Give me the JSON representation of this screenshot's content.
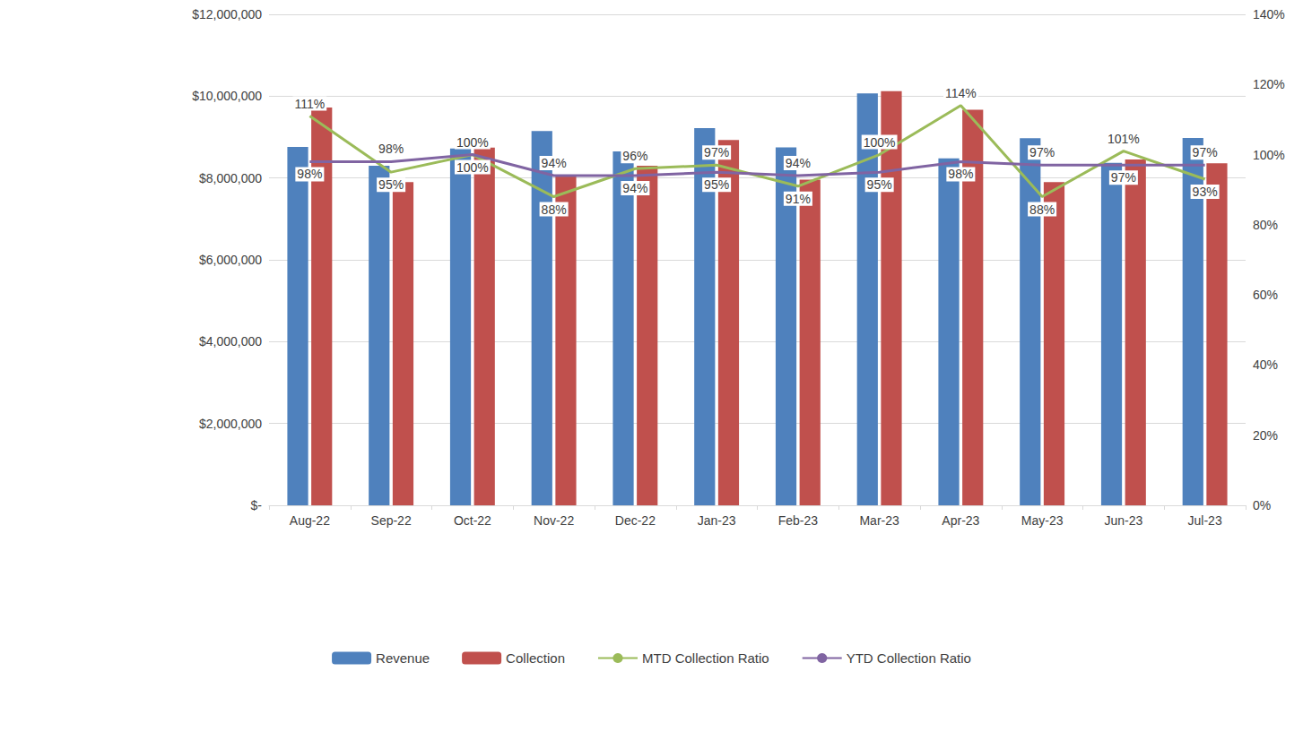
{
  "chart_data": {
    "type": "bar",
    "categories": [
      "Aug-22",
      "Sep-22",
      "Oct-22",
      "Nov-22",
      "Dec-22",
      "Jan-23",
      "Feb-23",
      "Mar-23",
      "Apr-23",
      "May-23",
      "Jun-23",
      "Jul-23"
    ],
    "series": [
      {
        "name": "Revenue",
        "type": "bar",
        "color": "#4F81BD",
        "values": [
          8760000,
          8300000,
          8720000,
          9150000,
          8650000,
          9220000,
          8750000,
          10070000,
          8480000,
          8970000,
          8370000,
          8980000
        ]
      },
      {
        "name": "Collection",
        "type": "bar",
        "color": "#C0504D",
        "values": [
          9720000,
          7900000,
          8740000,
          8050000,
          8300000,
          8930000,
          7960000,
          10120000,
          9670000,
          7900000,
          8450000,
          8360000
        ]
      },
      {
        "name": "MTD Collection Ratio",
        "type": "line",
        "axis": "y2",
        "color": "#9BBB59",
        "data_labels": true,
        "values": [
          111,
          95,
          100,
          88,
          96,
          97,
          91,
          100,
          114,
          88,
          101,
          93
        ],
        "value_labels": [
          "111%",
          "95%",
          "100%",
          "88%",
          "96%",
          "97%",
          "91%",
          "100%",
          "114%",
          "88%",
          "101%",
          "93%"
        ]
      },
      {
        "name": "YTD Collection Ratio",
        "type": "line",
        "axis": "y2",
        "color": "#8064A2",
        "data_labels": true,
        "values": [
          98,
          98,
          100,
          94,
          94,
          95,
          94,
          95,
          98,
          97,
          97,
          97
        ],
        "value_labels": [
          "98%",
          "98%",
          "100%",
          "94%",
          "94%",
          "95%",
          "94%",
          "95%",
          "98%",
          "97%",
          "97%",
          "97%"
        ]
      }
    ],
    "ylim": [
      0,
      12000000
    ],
    "yticks": [
      {
        "value": 0,
        "label": "$-"
      },
      {
        "value": 2000000,
        "label": "$2,000,000"
      },
      {
        "value": 4000000,
        "label": "$4,000,000"
      },
      {
        "value": 6000000,
        "label": "$6,000,000"
      },
      {
        "value": 8000000,
        "label": "$8,000,000"
      },
      {
        "value": 10000000,
        "label": "$10,000,000"
      },
      {
        "value": 12000000,
        "label": "$12,000,000"
      }
    ],
    "y2lim": [
      0,
      140
    ],
    "y2ticks": [
      {
        "value": 0,
        "label": "0%"
      },
      {
        "value": 20,
        "label": "20%"
      },
      {
        "value": 40,
        "label": "40%"
      },
      {
        "value": 60,
        "label": "60%"
      },
      {
        "value": 80,
        "label": "80%"
      },
      {
        "value": 100,
        "label": "100%"
      },
      {
        "value": 120,
        "label": "120%"
      },
      {
        "value": 140,
        "label": "140%"
      }
    ],
    "grid": true,
    "legend": "bottom"
  }
}
